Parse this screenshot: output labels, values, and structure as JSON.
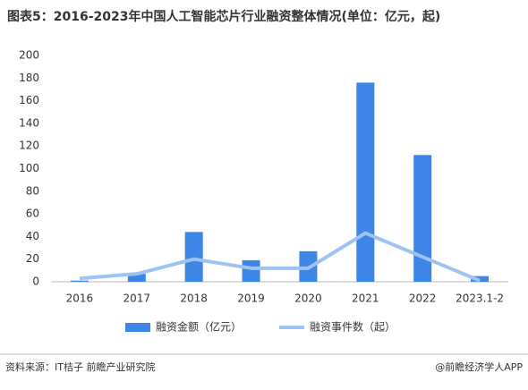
{
  "chart_data": {
    "type": "bar-line",
    "title": "图表5：2016-2023年中国人工智能芯片行业融资整体情况(单位：亿元，起)",
    "categories": [
      "2016",
      "2017",
      "2018",
      "2019",
      "2020",
      "2021",
      "2022",
      "2023.1-2"
    ],
    "series": [
      {
        "name": "融资金额（亿元）",
        "type": "bar",
        "color": "#3d85e6",
        "values": [
          1,
          7,
          44,
          19,
          27,
          176,
          112,
          5
        ]
      },
      {
        "name": "融资事件数（起）",
        "type": "line",
        "color": "#9ec3f0",
        "values": [
          3,
          7,
          20,
          12,
          12,
          43,
          22,
          1
        ]
      }
    ],
    "ylim": [
      0,
      200
    ],
    "yticks": [
      0,
      20,
      40,
      60,
      80,
      100,
      120,
      140,
      160,
      180,
      200
    ],
    "grid": false,
    "legend": "bottom",
    "source": "资料来源：IT桔子 前瞻产业研究院",
    "credit": "@前瞻经济学人APP"
  }
}
